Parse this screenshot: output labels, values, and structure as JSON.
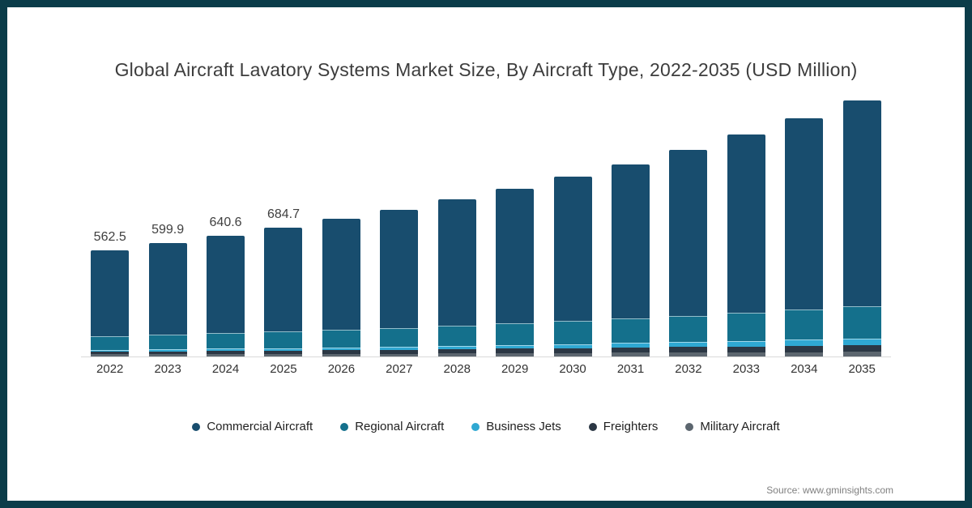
{
  "page": {
    "border_color": "#0B3C49",
    "background": "#FFFFFF",
    "axis_line_color": "#D9D9D9"
  },
  "header": {
    "title": "Global Aircraft Lavatory Systems Market Size, By Aircraft Type, 2022-2035 (USD Million)"
  },
  "footer": {
    "source": "Source: www.gminsights.com"
  },
  "chart_data": {
    "type": "bar",
    "stacked": true,
    "title": "Global Aircraft Lavatory Systems Market Size, By Aircraft Type, 2022-2035 (USD Million)",
    "unit": "USD Million",
    "grid": false,
    "legend_position": "bottom",
    "ylim": [
      0,
      1400
    ],
    "categories": [
      "2022",
      "2023",
      "2024",
      "2025",
      "2026",
      "2027",
      "2028",
      "2029",
      "2030",
      "2031",
      "2032",
      "2033",
      "2034",
      "2035"
    ],
    "bar_labels": [
      "562.5",
      "599.9",
      "640.6",
      "684.7",
      "",
      "",
      "",
      "",
      "",
      "",
      "",
      "",
      "",
      ""
    ],
    "totals": [
      562.5,
      599.9,
      640.6,
      684.7,
      730.0,
      780.0,
      833.0,
      891.0,
      952.0,
      1019.0,
      1095.0,
      1176.0,
      1262.0,
      1358.0
    ],
    "series": [
      {
        "name": "Commercial Aircraft",
        "color": "#184D6E",
        "values": [
          454.0,
          484.2,
          517.0,
          552.4,
          588.7,
          628.8,
          669.0,
          716.0,
          765.0,
          818.5,
          879.0,
          944.0,
          1013.0,
          1092.0
        ]
      },
      {
        "name": "Regional Aircraft",
        "color": "#14708C",
        "values": [
          72.0,
          76.6,
          81.8,
          87.4,
          93.2,
          99.5,
          106.0,
          113.5,
          121.0,
          129.5,
          139.0,
          149.5,
          160.5,
          172.5
        ]
      },
      {
        "name": "Business Jets",
        "color": "#2FA8D2",
        "values": [
          10.8,
          11.7,
          12.7,
          13.8,
          15.0,
          16.4,
          17.5,
          19.5,
          21.5,
          24.0,
          27.0,
          29.5,
          32.5,
          35.5
        ]
      },
      {
        "name": "Freighters",
        "color": "#2B3744",
        "values": [
          15.0,
          16.0,
          17.1,
          18.3,
          19.5,
          20.8,
          22.5,
          24.0,
          25.5,
          27.0,
          28.5,
          30.5,
          32.5,
          34.0
        ]
      },
      {
        "name": "Military Aircraft",
        "color": "#5C666F",
        "values": [
          10.7,
          11.4,
          12.0,
          12.8,
          13.6,
          14.5,
          18.0,
          18.0,
          19.0,
          20.0,
          21.5,
          22.5,
          23.5,
          24.0
        ]
      }
    ]
  }
}
